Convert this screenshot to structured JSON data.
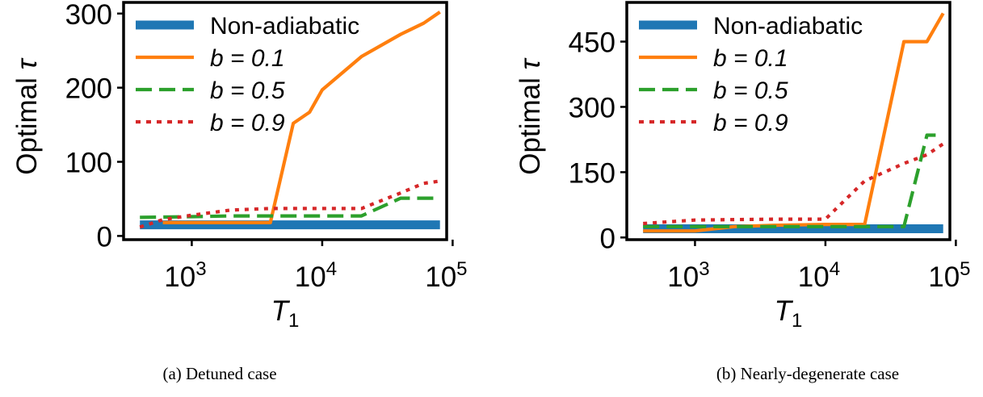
{
  "chart_data": [
    {
      "type": "line",
      "caption": "(a) Detuned case",
      "xlabel_main": "T",
      "xlabel_sub": "1",
      "ylabel_main": "Optimal ",
      "ylabel_symbol": "τ",
      "xscale": "log",
      "xlim": [
        300,
        90000
      ],
      "ylim": [
        -5,
        315
      ],
      "x_ticks": [
        {
          "value": 1000,
          "base": "10",
          "exp": "3"
        },
        {
          "value": 10000,
          "base": "10",
          "exp": "4"
        },
        {
          "value": 100000,
          "base": "10",
          "exp": "5"
        }
      ],
      "y_ticks": [
        {
          "value": 0,
          "label": "0"
        },
        {
          "value": 100,
          "label": "100"
        },
        {
          "value": 200,
          "label": "200"
        },
        {
          "value": 300,
          "label": "300"
        }
      ],
      "legend_position": "top-left",
      "series": [
        {
          "name": "Non-adiabatic",
          "color": "#1f77b4",
          "style": "thick",
          "x": [
            400,
            80000
          ],
          "y": [
            15,
            15
          ]
        },
        {
          "name": "b = 0.1",
          "color": "#ff7f0e",
          "style": "solid",
          "x": [
            600,
            1000,
            2000,
            4000,
            6000,
            8000,
            10000,
            20000,
            40000,
            60000,
            80000
          ],
          "y": [
            18,
            18,
            18,
            18,
            152,
            167,
            197,
            242,
            272,
            287,
            302
          ]
        },
        {
          "name": "b = 0.5",
          "color": "#2ca02c",
          "style": "dashed",
          "x": [
            400,
            1000,
            2000,
            4000,
            10000,
            20000,
            40000,
            80000
          ],
          "y": [
            25,
            26,
            27,
            27,
            27,
            27,
            51,
            51
          ]
        },
        {
          "name": "b = 0.9",
          "color": "#d62728",
          "style": "dotted",
          "x": [
            400,
            600,
            1000,
            2000,
            4000,
            10000,
            20000,
            40000,
            60000,
            80000
          ],
          "y": [
            12,
            22,
            28,
            35,
            37,
            37,
            37,
            58,
            71,
            74
          ]
        }
      ]
    },
    {
      "type": "line",
      "caption": "(b) Nearly-degenerate case",
      "xlabel_main": "T",
      "xlabel_sub": "1",
      "ylabel_main": "Optimal ",
      "ylabel_symbol": "τ",
      "xscale": "log",
      "xlim": [
        300,
        90000
      ],
      "ylim": [
        -5,
        540
      ],
      "x_ticks": [
        {
          "value": 1000,
          "base": "10",
          "exp": "3"
        },
        {
          "value": 10000,
          "base": "10",
          "exp": "4"
        },
        {
          "value": 100000,
          "base": "10",
          "exp": "5"
        }
      ],
      "y_ticks": [
        {
          "value": 0,
          "label": "0"
        },
        {
          "value": 150,
          "label": "150"
        },
        {
          "value": 300,
          "label": "300"
        },
        {
          "value": 450,
          "label": "450"
        }
      ],
      "legend_position": "top-left",
      "series": [
        {
          "name": "Non-adiabatic",
          "color": "#1f77b4",
          "style": "thick",
          "x": [
            400,
            80000
          ],
          "y": [
            20,
            20
          ]
        },
        {
          "name": "b = 0.1",
          "color": "#ff7f0e",
          "style": "solid",
          "x": [
            400,
            1000,
            2000,
            4000,
            10000,
            20000,
            40000,
            60000,
            80000
          ],
          "y": [
            15,
            15,
            25,
            28,
            30,
            30,
            450,
            450,
            515
          ]
        },
        {
          "name": "b = 0.5",
          "color": "#2ca02c",
          "style": "dashed",
          "x": [
            400,
            1000,
            10000,
            40000,
            60000,
            70000
          ],
          "y": [
            25,
            25,
            25,
            25,
            235,
            235
          ]
        },
        {
          "name": "b = 0.9",
          "color": "#d62728",
          "style": "dotted",
          "x": [
            400,
            1000,
            4000,
            10000,
            20000,
            40000,
            60000,
            80000
          ],
          "y": [
            32,
            40,
            42,
            42,
            130,
            170,
            190,
            215
          ]
        }
      ]
    }
  ]
}
